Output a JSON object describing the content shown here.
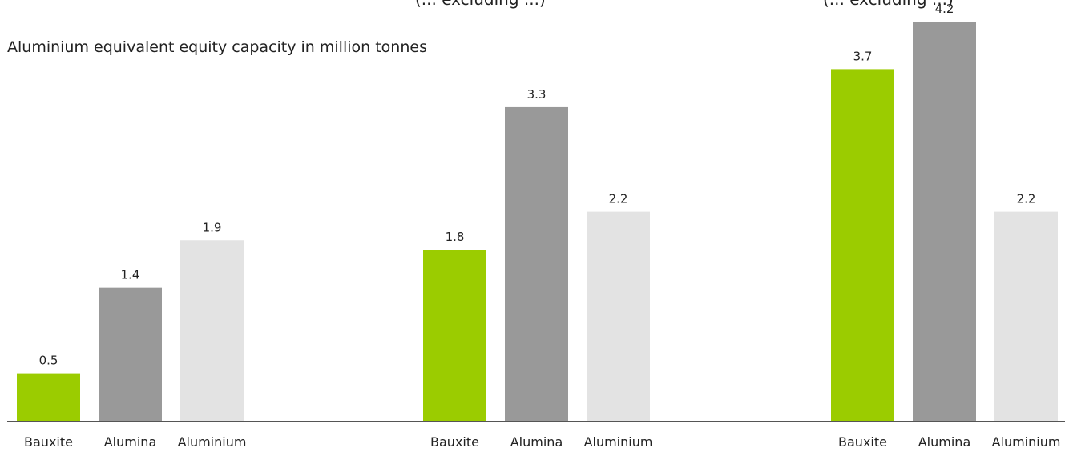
{
  "chart_data": {
    "type": "bar",
    "ylabel": "Aluminium equivalent equity capacity in million tonnes",
    "categories": [
      "Bauxite",
      "Alumina",
      "Aluminium"
    ],
    "groups": [
      {
        "title": "",
        "values": [
          0.5,
          1.4,
          1.9
        ]
      },
      {
        "title": "(... excluding ...)",
        "values": [
          1.8,
          3.3,
          2.2
        ]
      },
      {
        "title": "(... excluding ...)",
        "values": [
          3.7,
          4.2,
          2.2
        ]
      }
    ],
    "ylim": [
      0,
      4.2
    ],
    "grid": false,
    "legend": "none",
    "colors": {
      "Bauxite": "#9bcc00",
      "Alumina": "#999999",
      "Aluminium": "#e3e3e3",
      "axis": "#555555",
      "text": "#222222"
    }
  }
}
